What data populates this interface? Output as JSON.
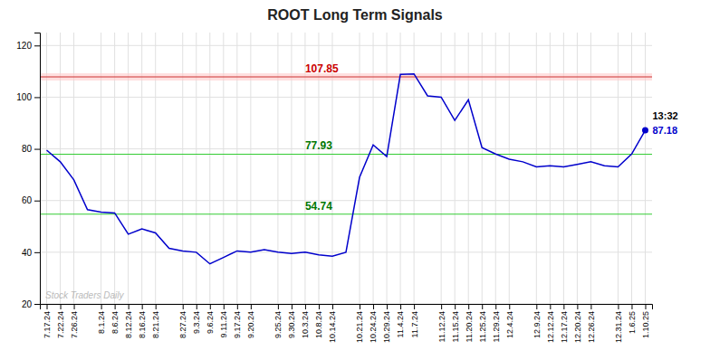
{
  "chart_data": {
    "type": "line",
    "title": "ROOT Long Term Signals",
    "categories": [
      "7.17.24",
      "7.22.24",
      "7.26.24",
      null,
      "8.1.24",
      "8.6.24",
      "8.12.24",
      "8.16.24",
      "8.21.24",
      null,
      "8.27.24",
      "9.3.24",
      "9.6.24",
      "9.11.24",
      "9.17.24",
      "9.20.24",
      null,
      "9.25.24",
      "9.30.24",
      "10.3.24",
      "10.8.24",
      "10.14.24",
      null,
      "10.21.24",
      "10.24.24",
      "10.29.24",
      "11.4.24",
      "11.7.24",
      null,
      "11.12.24",
      "11.15.24",
      "11.20.24",
      "11.25.24",
      "11.29.24",
      "12.4.24",
      null,
      "12.9.24",
      "12.12.24",
      "12.17.24",
      "12.20.24",
      "12.26.24",
      null,
      "12.31.24",
      "1.6.25",
      "1.10.25"
    ],
    "values": [
      79.5,
      75.0,
      68.0,
      56.5,
      55.5,
      55.2,
      47.0,
      49.0,
      47.5,
      41.5,
      40.5,
      40.0,
      35.5,
      38.0,
      40.5,
      40.0,
      41.0,
      40.0,
      39.5,
      40.0,
      39.0,
      38.5,
      40.0,
      69.0,
      81.5,
      77.0,
      108.8,
      109.0,
      100.5,
      100.0,
      91.0,
      99.0,
      80.5,
      78.0,
      76.0,
      75.0,
      73.0,
      73.5,
      73.0,
      74.0,
      75.0,
      73.5,
      73.0,
      78.0,
      87.18
    ],
    "color": "#0000cc",
    "ylim": [
      20,
      125
    ],
    "yticks": [
      20,
      40,
      60,
      80,
      100,
      120
    ],
    "grid": true,
    "reference_lines": [
      {
        "value": 107.85,
        "color": "#cc3333",
        "label_color": "#cc0000",
        "band_color": "#ffcccc"
      },
      {
        "value": 77.93,
        "color": "#33cc33",
        "label_color": "#007700"
      },
      {
        "value": 54.74,
        "color": "#33cc33",
        "label_color": "#007700"
      }
    ],
    "last_point": {
      "label": "13:32",
      "value": 87.18
    },
    "watermark": "Stock Traders Daily"
  }
}
